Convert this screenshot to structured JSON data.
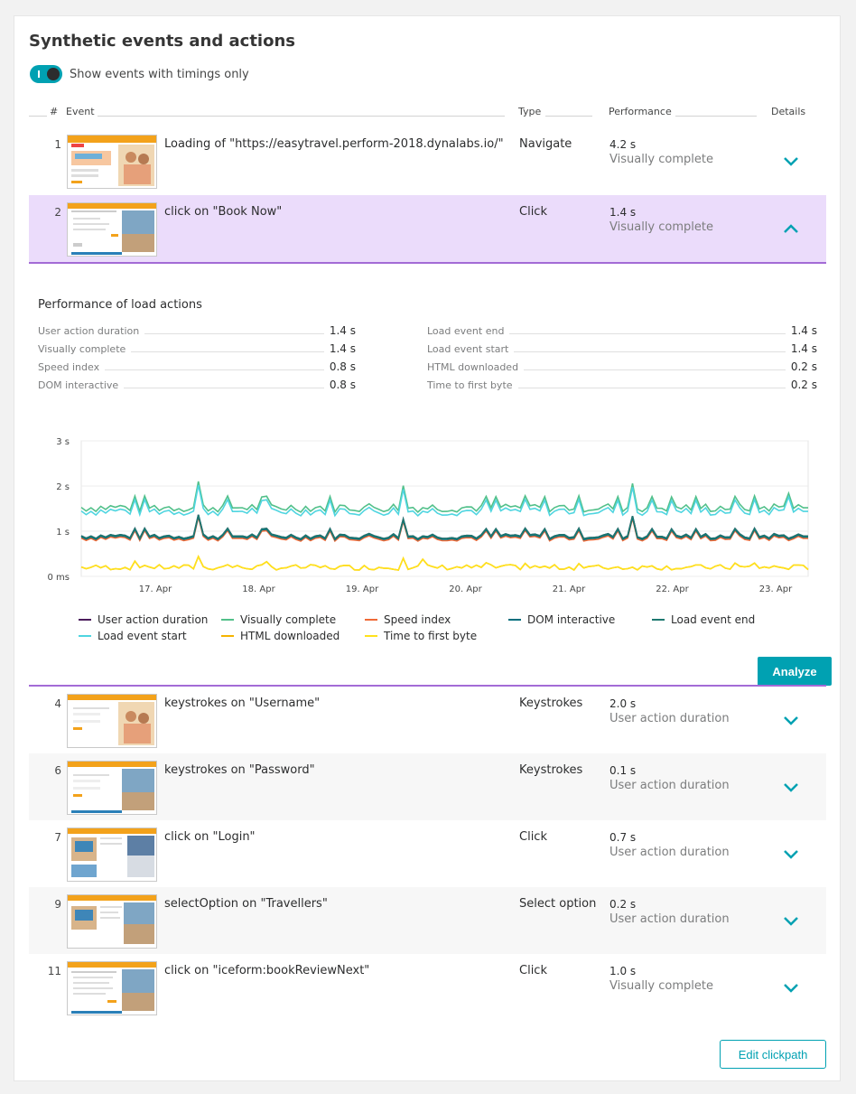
{
  "title": "Synthetic events and actions",
  "toggle": {
    "label": "Show events with timings only",
    "on": true
  },
  "columns": {
    "num": "#",
    "event": "Event",
    "type": "Type",
    "performance": "Performance",
    "details": "Details"
  },
  "rows": [
    {
      "num": "1",
      "event": "Loading of \"https://easytravel.perform-2018.dynalabs.io/\"",
      "type": "Navigate",
      "value": "4.2 s",
      "metric": "Visually complete"
    },
    {
      "num": "2",
      "event": "click on \"Book Now\"",
      "type": "Click",
      "value": "1.4 s",
      "metric": "Visually complete"
    },
    {
      "num": "4",
      "event": "keystrokes on \"Username\"",
      "type": "Keystrokes",
      "value": "2.0 s",
      "metric": "User action duration"
    },
    {
      "num": "6",
      "event": "keystrokes on \"Password\"",
      "type": "Keystrokes",
      "value": "0.1 s",
      "metric": "User action duration"
    },
    {
      "num": "7",
      "event": "click on \"Login\"",
      "type": "Click",
      "value": "0.7 s",
      "metric": "User action duration"
    },
    {
      "num": "9",
      "event": "selectOption on \"Travellers\"",
      "type": "Select option",
      "value": "0.2 s",
      "metric": "User action duration"
    },
    {
      "num": "11",
      "event": "click on \"iceform:bookReviewNext\"",
      "type": "Click",
      "value": "1.0 s",
      "metric": "Visually complete"
    }
  ],
  "details": {
    "title": "Performance of load actions",
    "metrics_left": [
      {
        "label": "User action duration",
        "value": "1.4 s"
      },
      {
        "label": "Visually complete",
        "value": "1.4 s"
      },
      {
        "label": "Speed index",
        "value": "0.8 s"
      },
      {
        "label": "DOM interactive",
        "value": "0.8 s"
      }
    ],
    "metrics_right": [
      {
        "label": "Load event end",
        "value": "1.4 s"
      },
      {
        "label": "Load event start",
        "value": "1.4 s"
      },
      {
        "label": "HTML downloaded",
        "value": "0.2 s"
      },
      {
        "label": "Time to first byte",
        "value": "0.2 s"
      }
    ],
    "analyze_label": "Analyze"
  },
  "chart_data": {
    "type": "line",
    "yticks": [
      "3 s",
      "2 s",
      "1 s",
      "0 ms"
    ],
    "ylim": [
      0,
      3
    ],
    "xticks": [
      "17. Apr",
      "18. Apr",
      "19. Apr",
      "20. Apr",
      "21. Apr",
      "22. Apr",
      "23. Apr"
    ],
    "grid": true,
    "legend_placement": "bottom",
    "series": [
      {
        "name": "User action duration",
        "color": "#4b1c5c",
        "base": 0.9,
        "group": "mid"
      },
      {
        "name": "Visually complete",
        "color": "#52c08a",
        "base": 1.5,
        "group": "high"
      },
      {
        "name": "Speed index",
        "color": "#ef6a37",
        "base": 0.85,
        "group": "mid"
      },
      {
        "name": "DOM interactive",
        "color": "#006e7d",
        "base": 0.85,
        "group": "mid"
      },
      {
        "name": "Load event end",
        "color": "#1e7870",
        "base": 0.9,
        "group": "mid"
      },
      {
        "name": "Load event start",
        "color": "#4fd5e0",
        "base": 1.45,
        "group": "high"
      },
      {
        "name": "HTML downloaded",
        "color": "#f5b400",
        "base": 0.2,
        "group": "low"
      },
      {
        "name": "Time to first byte",
        "color": "#ffe11c",
        "base": 0.2,
        "group": "low"
      }
    ]
  },
  "footer": {
    "edit_label": "Edit clickpath"
  }
}
